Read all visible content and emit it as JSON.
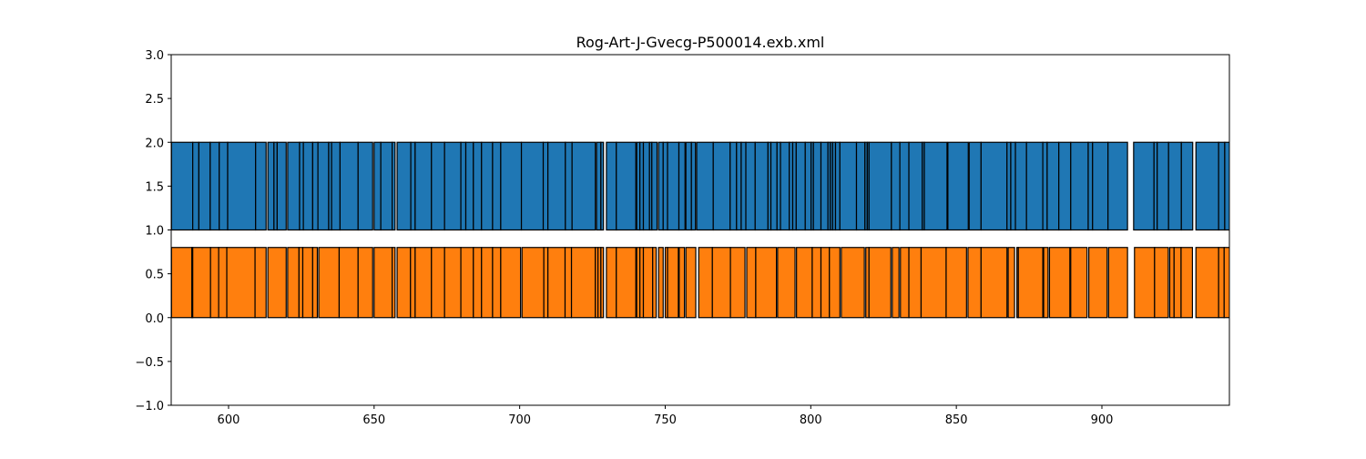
{
  "chart_data": {
    "type": "bar",
    "subtype": "broken_barh",
    "title": "Rog-Art-J-Gvecg-P500014.exb.xml",
    "xlabel": "",
    "ylabel": "",
    "xlim": [
      580.3,
      943.8
    ],
    "ylim": [
      -1.0,
      3.0
    ],
    "xticks": [
      600,
      650,
      700,
      750,
      800,
      850,
      900
    ],
    "xtick_labels": [
      "600",
      "650",
      "700",
      "750",
      "800",
      "850",
      "900"
    ],
    "yticks": [
      -1.0,
      -0.5,
      0.0,
      0.5,
      1.0,
      1.5,
      2.0,
      2.5,
      3.0
    ],
    "ytick_labels": [
      "−1.0",
      "−0.5",
      "0.0",
      "0.5",
      "1.0",
      "1.5",
      "2.0",
      "2.5",
      "3.0"
    ],
    "grid": false,
    "edge_color": "#000000",
    "series": [
      {
        "color": "#1f77b4",
        "y_range": [
          1.0,
          2.0
        ],
        "runs": [
          [
            580.4,
            587.7,
            589.8,
            593.7,
            596.8,
            599.7,
            609.3,
            612.9
          ],
          [
            613.5,
            615.6,
            616.7,
            619.8
          ],
          [
            620.3,
            624.4,
            625.7,
            628.9,
            630.7,
            634.4,
            635.4,
            638.3,
            644.5,
            649.5
          ],
          [
            650.0,
            652.3,
            656.2,
            657.2
          ],
          [
            657.9,
            662.6,
            664.1,
            669.7,
            674.2,
            679.8,
            681.5,
            684.1,
            686.9,
            690.7,
            693.5,
            700.6,
            708.1,
            709.7,
            715.7,
            718.0,
            726.0
          ],
          [
            726.4,
            727.9,
            728.8
          ],
          [
            729.8,
            733.2,
            739.9
          ],
          [
            740.2,
            741.3,
            742.5,
            744.6,
            745.4,
            747.2
          ],
          [
            747.7,
            749.3,
            750.8,
            754.7,
            756.8
          ],
          [
            757.1,
            759.0,
            760.4
          ],
          [
            760.8,
            766.5,
            772.3,
            774.5,
            776.1,
            777.7,
            780.9,
            785.3,
            786.3,
            788.4,
            789.6,
            792.6,
            793.8,
            795.0,
            798.1,
            800.1,
            800.9,
            803.5,
            805.9,
            806.7,
            807.5,
            808.5,
            810.0,
            815.7,
            818.6,
            819.4,
            820.0,
            827.7,
            830.6,
            833.7,
            838.3,
            839.0,
            846.8
          ],
          [
            847.1,
            854.1
          ],
          [
            854.4,
            858.5,
            867.4,
            868.7,
            870.3,
            874.1,
            879.7,
            881.2,
            885.2,
            889.3,
            895.3,
            896.8,
            902.1,
            908.8
          ],
          [
            910.9,
            917.9,
            919.0,
            922.9,
            927.3,
            931.2
          ],
          [
            932.3,
            940.1,
            942.2,
            945.0
          ]
        ]
      },
      {
        "color": "#ff7f0e",
        "y_range": [
          0.0,
          0.8
        ],
        "runs": [
          [
            580.4,
            587.4,
            587.7,
            593.8,
            596.6,
            599.4,
            609.1,
            612.9
          ],
          [
            613.5,
            619.8
          ],
          [
            620.3,
            624.2,
            625.5,
            628.9,
            630.5
          ],
          [
            631.0,
            638.0,
            644.5,
            649.5
          ],
          [
            650.0,
            656.2,
            657.2
          ],
          [
            657.9,
            662.5,
            664.1,
            669.7,
            674.2,
            679.8,
            684.1,
            686.9,
            690.7,
            693.5,
            700.3
          ],
          [
            700.8,
            708.3,
            709.7,
            715.6,
            717.8,
            726.0,
            726.9,
            727.9,
            728.8
          ],
          [
            729.8,
            733.2,
            739.9
          ],
          [
            740.2,
            741.3,
            742.5,
            745.7,
            746.9
          ],
          [
            747.7,
            749.3
          ],
          [
            750.0,
            750.8,
            754.5
          ],
          [
            754.8,
            756.6
          ],
          [
            757.1,
            760.5
          ],
          [
            761.5,
            766.2,
            772.4,
            777.4
          ],
          [
            778.0,
            781.1,
            788.2
          ],
          [
            788.6,
            794.6
          ],
          [
            795.1,
            800.5,
            803.5,
            806.4,
            810.0
          ],
          [
            810.5,
            818.4
          ],
          [
            818.9,
            820.0,
            827.5
          ],
          [
            828.0,
            830.3
          ],
          [
            830.8,
            833.7,
            837.9,
            846.5,
            853.5
          ],
          [
            854.0,
            858.5,
            867.4
          ],
          [
            867.8,
            870.0
          ],
          [
            870.8,
            871.3,
            879.7
          ],
          [
            880.0,
            881.5
          ],
          [
            882.0,
            889.0
          ],
          [
            889.3,
            894.9
          ],
          [
            895.5,
            901.8
          ],
          [
            902.3,
            908.8
          ],
          [
            911.2,
            918.1,
            922.8
          ],
          [
            923.3,
            924.8,
            927.2,
            931.1
          ],
          [
            932.3,
            940.1,
            942.0,
            945.0
          ]
        ]
      }
    ]
  }
}
